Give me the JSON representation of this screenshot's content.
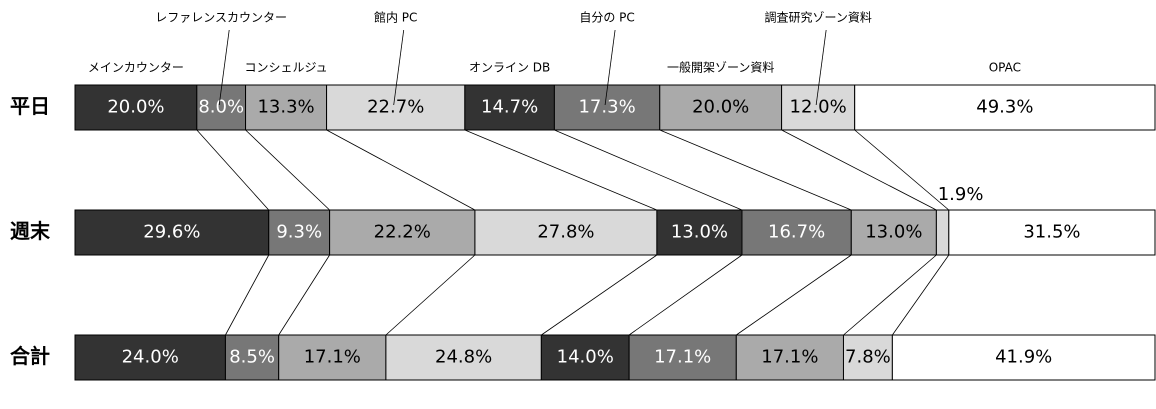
{
  "chart_data": {
    "type": "stacked-bar-horizontal",
    "categories": [
      "平日",
      "週末",
      "合計"
    ],
    "series": [
      {
        "name": "メインカウンター",
        "color": "#333333",
        "values": [
          20.0,
          29.6,
          24.0
        ],
        "value_labels": [
          "20.0%",
          "29.6%",
          "24.0%"
        ]
      },
      {
        "name": "レファレンスカウンター",
        "color": "#777777",
        "values": [
          8.0,
          9.3,
          8.5
        ],
        "value_labels": [
          "8.0%",
          "9.3%",
          "8.5%"
        ]
      },
      {
        "name": "コンシェルジュ",
        "color": "#aaaaaa",
        "values": [
          13.3,
          22.2,
          17.1
        ],
        "value_labels": [
          "13.3%",
          "22.2%",
          "17.1%"
        ]
      },
      {
        "name": "館内 PC",
        "color": "#d9d9d9",
        "values": [
          22.7,
          27.8,
          24.8
        ],
        "value_labels": [
          "22.7%",
          "27.8%",
          "24.8%"
        ]
      },
      {
        "name": "オンライン DB",
        "color": "#333333",
        "values": [
          14.7,
          13.0,
          14.0
        ],
        "value_labels": [
          "14.7%",
          "13.0%",
          "14.0%"
        ]
      },
      {
        "name": "自分の PC",
        "color": "#777777",
        "values": [
          17.3,
          16.7,
          17.1
        ],
        "value_labels": [
          "17.3%",
          "16.7%",
          "17.1%"
        ]
      },
      {
        "name": "一般開架ゾーン資料",
        "color": "#aaaaaa",
        "values": [
          20.0,
          13.0,
          17.1
        ],
        "value_labels": [
          "20.0%",
          "13.0%",
          "17.1%"
        ]
      },
      {
        "name": "調査研究ゾーン資料",
        "color": "#d9d9d9",
        "values": [
          12.0,
          1.9,
          7.8
        ],
        "value_labels": [
          "12.0%",
          "1.9%",
          "7.8%"
        ]
      },
      {
        "name": "OPAC",
        "color": "#ffffff",
        "values": [
          49.3,
          31.5,
          41.9
        ],
        "value_labels": [
          "49.3%",
          "31.5%",
          "41.9%"
        ]
      }
    ]
  }
}
